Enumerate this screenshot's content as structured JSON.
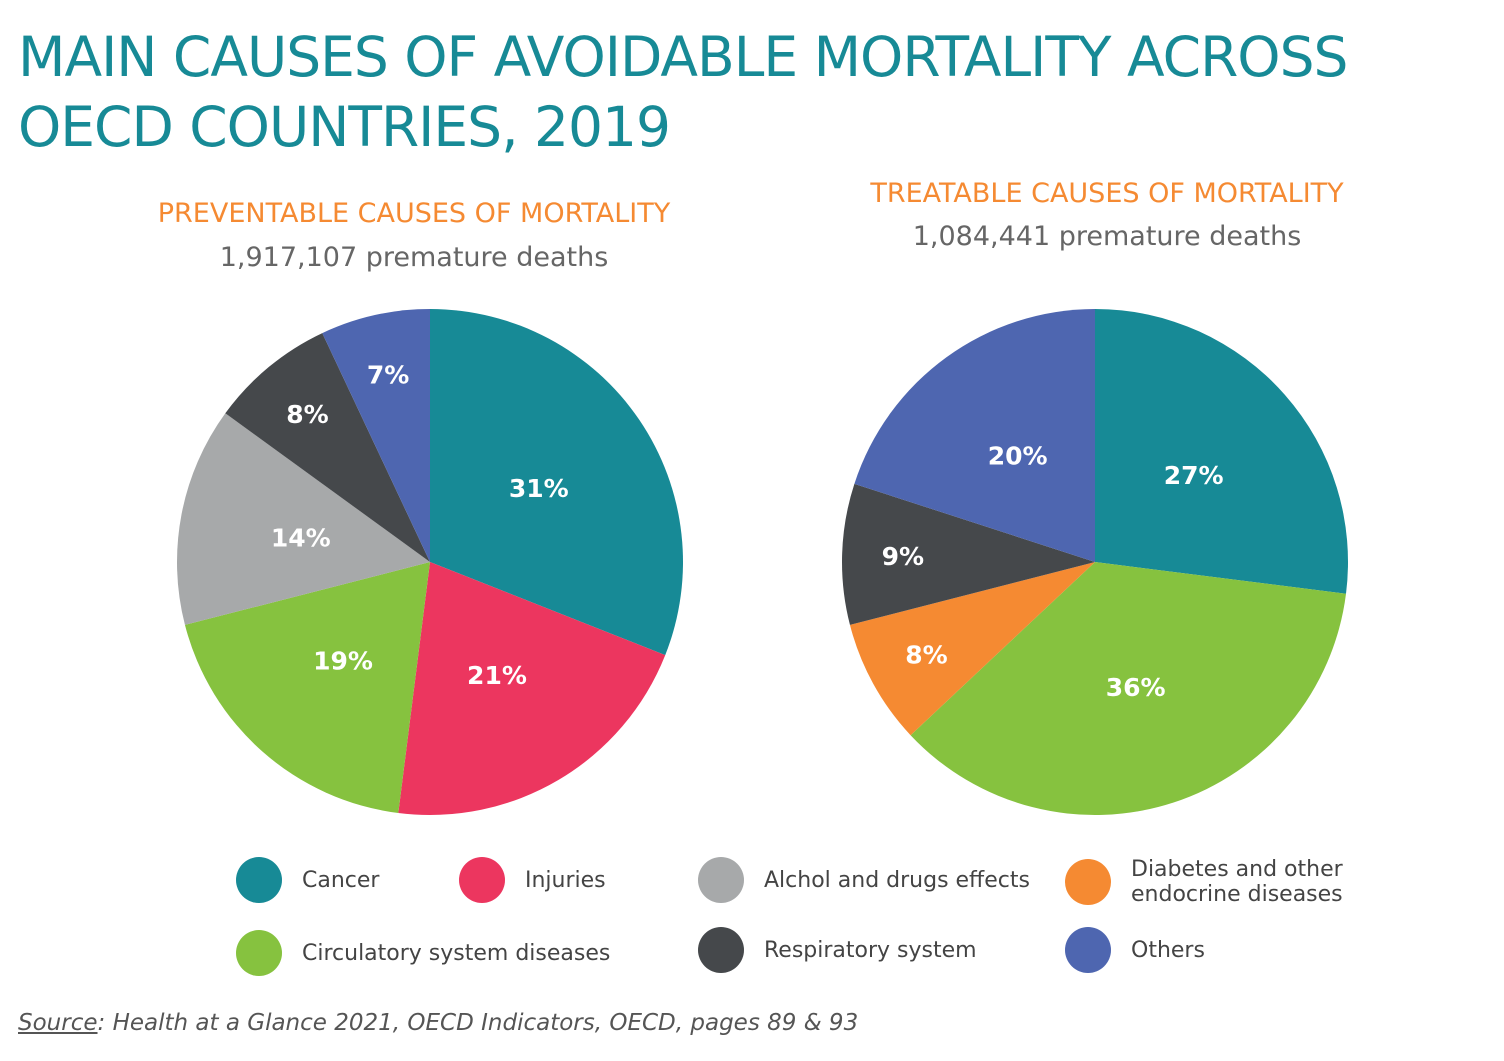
{
  "title": "MAIN CAUSES OF AVOIDABLE MORTALITY ACROSS OECD COUNTRIES, 2019",
  "colors": {
    "title": "#178a96",
    "subtitle": "#f58a32",
    "Cancer": "#178a96",
    "Injuries": "#ec365f",
    "Alchol and drugs effects": "#a7a9aa",
    "Diabetes and other endocrine diseases": "#f58a32",
    "Circulatory system diseases": "#86c23f",
    "Respiratory system": "#45484b",
    "Others": "#4e66b0"
  },
  "chart_data": [
    {
      "type": "pie",
      "title": "PREVENTABLE CAUSES OF MORTALITY",
      "subtitle": "1,917,107 premature deaths",
      "categories": [
        "Cancer",
        "Injuries",
        "Circulatory system diseases",
        "Alchol and drugs effects",
        "Respiratory system",
        "Others"
      ],
      "values": [
        31,
        21,
        19,
        14,
        8,
        7
      ],
      "labels": [
        "31%",
        "21%",
        "19%",
        "14%",
        "8%",
        "7%"
      ]
    },
    {
      "type": "pie",
      "title": "TREATABLE CAUSES OF MORTALITY",
      "subtitle": "1,084,441 premature deaths",
      "categories": [
        "Cancer",
        "Circulatory system diseases",
        "Diabetes and other endocrine diseases",
        "Respiratory system",
        "Others"
      ],
      "values": [
        27,
        36,
        8,
        9,
        20
      ],
      "labels": [
        "27%",
        "36%",
        "8%",
        "9%",
        "20%"
      ]
    }
  ],
  "legend": [
    "Cancer",
    "Injuries",
    "Alchol and drugs effects",
    "Diabetes and other endocrine diseases",
    "Circulatory system diseases",
    "Respiratory system",
    "Others"
  ],
  "source": {
    "label": "Source",
    "text": ": Health at a Glance 2021, OECD Indicators, OECD, pages 89 & 93"
  }
}
